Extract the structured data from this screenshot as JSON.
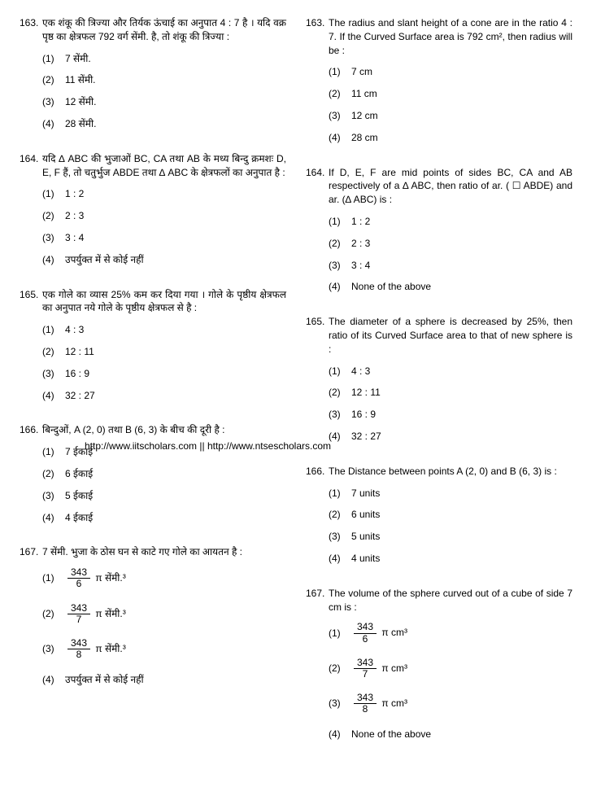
{
  "watermark": "http://www.iitscholars.com  ||  http://www.ntsescholars.com",
  "columns": [
    {
      "questions": [
        {
          "num": "163.",
          "text": "एक शंकू की त्रिज्या और तिर्यक ऊंचाई का अनुपात 4 : 7 है । यदि वक्र पृष्ठ का क्षेत्रफल 792 वर्ग सेंमी. है, तो शंकू की त्रिज्या :",
          "options": [
            {
              "n": "(1)",
              "t": "7 सेंमी."
            },
            {
              "n": "(2)",
              "t": "11 सेंमी."
            },
            {
              "n": "(3)",
              "t": "12 सेंमी."
            },
            {
              "n": "(4)",
              "t": "28 सेंमी."
            }
          ]
        },
        {
          "num": "164.",
          "text": "यदि ∆ ABC की भुजाओं BC, CA तथा AB के मध्य बिन्दु क्रमशः  D, E, F हैं, तो चतुर्भुज ABDE तथा ∆ ABC के क्षेत्रफलों का अनुपात है :",
          "options": [
            {
              "n": "(1)",
              "t": "1 : 2"
            },
            {
              "n": "(2)",
              "t": "2 : 3"
            },
            {
              "n": "(3)",
              "t": "3 : 4"
            },
            {
              "n": "(4)",
              "t": "उपर्युक्त में से कोई नहीं"
            }
          ]
        },
        {
          "num": "165.",
          "text": "एक गोले का व्यास 25% कम कर दिया गया । गोले के पृष्ठीय क्षेत्रफल का अनुपात नये गोले के पृष्ठीय क्षेत्रफल से है :",
          "options": [
            {
              "n": "(1)",
              "t": "4 : 3"
            },
            {
              "n": "(2)",
              "t": "12 : 11"
            },
            {
              "n": "(3)",
              "t": "16 : 9"
            },
            {
              "n": "(4)",
              "t": "32 : 27"
            }
          ]
        },
        {
          "num": "166.",
          "text": "बिन्दुओं, A (2, 0) तथा B (6, 3) के बीच की दूरी है :",
          "options": [
            {
              "n": "(1)",
              "t": "7 ईकाई"
            },
            {
              "n": "(2)",
              "t": "6 ईकाई"
            },
            {
              "n": "(3)",
              "t": "5 ईकाई"
            },
            {
              "n": "(4)",
              "t": "4 ईकाई"
            }
          ]
        },
        {
          "num": "167.",
          "text": "7 सेंमी. भुजा के ठोस घन से काटे गए गोले का आयतन है :",
          "options": [
            {
              "n": "(1)",
              "frac_num": "343",
              "frac_den": "6",
              "suffix": " π सेंमी.³"
            },
            {
              "n": "(2)",
              "frac_num": "343",
              "frac_den": "7",
              "suffix": " π सेंमी.³"
            },
            {
              "n": "(3)",
              "frac_num": "343",
              "frac_den": "8",
              "suffix": " π  सेंमी.³"
            },
            {
              "n": "(4)",
              "t": "उपर्युक्त में से कोई नहीं"
            }
          ]
        }
      ]
    },
    {
      "questions": [
        {
          "num": "163.",
          "text": "The radius and slant height of a cone are in the ratio 4 : 7. If the Curved Surface area is 792 cm², then radius will be :",
          "options": [
            {
              "n": "(1)",
              "t": "7 cm"
            },
            {
              "n": "(2)",
              "t": "11 cm"
            },
            {
              "n": "(3)",
              "t": "12 cm"
            },
            {
              "n": "(4)",
              "t": "28 cm"
            }
          ]
        },
        {
          "num": "164.",
          "text": "If D, E, F are mid points of sides BC, CA and AB respectively of a  ∆ ABC, then ratio of ar. ( ☐   ABDE) and ar. (∆ ABC) is :",
          "options": [
            {
              "n": "(1)",
              "t": "1 : 2"
            },
            {
              "n": "(2)",
              "t": "2 : 3"
            },
            {
              "n": "(3)",
              "t": "3 : 4"
            },
            {
              "n": "(4)",
              "t": "None of the above"
            }
          ]
        },
        {
          "num": "165.",
          "text": "The diameter of a sphere is decreased by 25%, then ratio of its Curved Surface area to that of new sphere is :",
          "options": [
            {
              "n": "(1)",
              "t": "4 : 3"
            },
            {
              "n": "(2)",
              "t": "12 : 11"
            },
            {
              "n": "(3)",
              "t": "16 : 9"
            },
            {
              "n": "(4)",
              "t": "32 : 27"
            }
          ]
        },
        {
          "num": "166.",
          "text": "The Distance between points A (2, 0) and B (6, 3) is :",
          "options": [
            {
              "n": "(1)",
              "t": "7 units"
            },
            {
              "n": "(2)",
              "t": "6 units"
            },
            {
              "n": "(3)",
              "t": "5 units"
            },
            {
              "n": "(4)",
              "t": "4 units"
            }
          ]
        },
        {
          "num": "167.",
          "text": "The volume of the sphere curved out of a cube of side 7 cm is :",
          "options": [
            {
              "n": "(1)",
              "frac_num": "343",
              "frac_den": "6",
              "suffix": " π cm³"
            },
            {
              "n": "(2)",
              "frac_num": "343",
              "frac_den": "7",
              "suffix": " π cm³"
            },
            {
              "n": "(3)",
              "frac_num": "343",
              "frac_den": "8",
              "suffix": " π cm³"
            },
            {
              "n": "(4)",
              "t": "None of the above"
            }
          ]
        }
      ]
    }
  ]
}
